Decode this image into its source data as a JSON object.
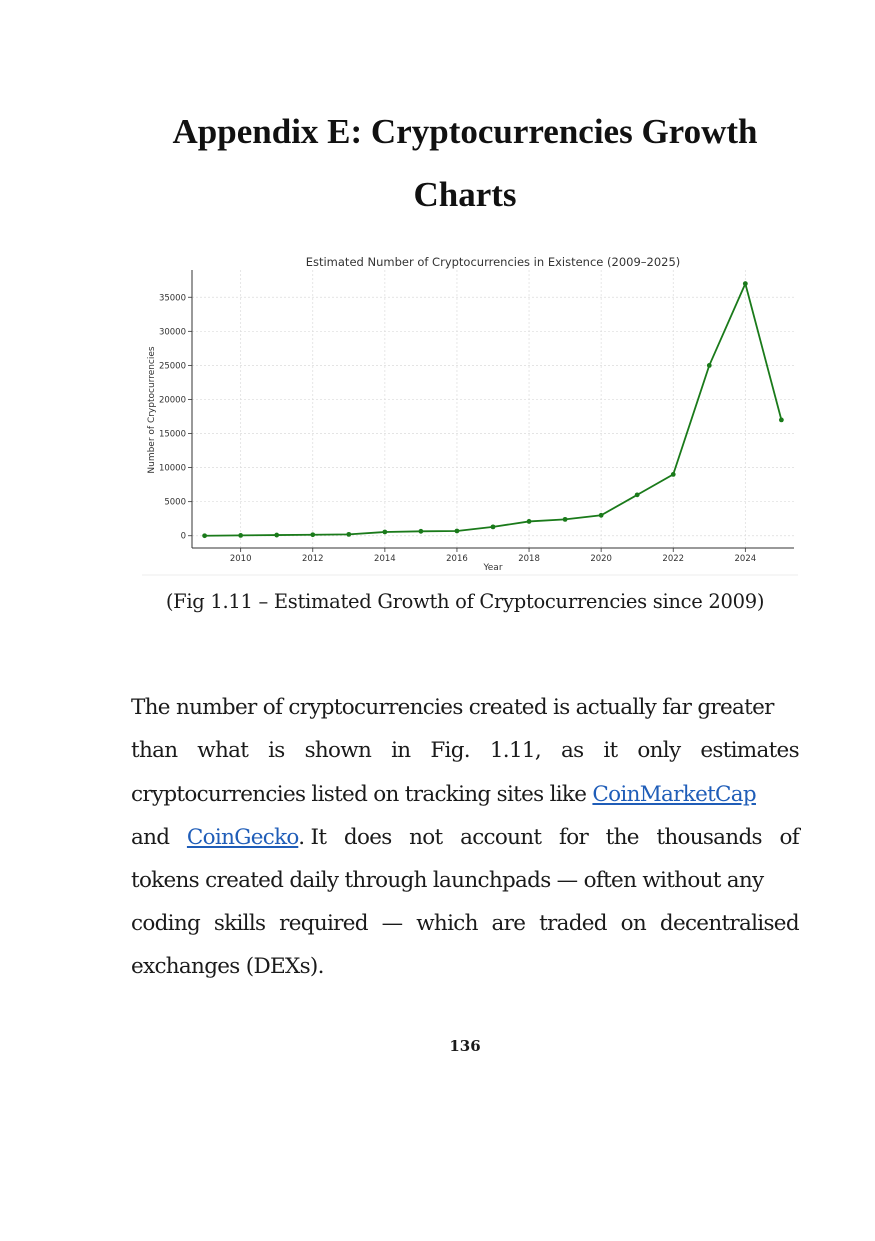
{
  "heading": {
    "line1": "Appendix E: Cryptocurrencies Growth",
    "line2": "Charts"
  },
  "figure": {
    "caption": "(Fig 1.11 – Estimated Growth of Cryptocurrencies since 2009)"
  },
  "chart_data": {
    "type": "line",
    "title": "Estimated Number of Cryptocurrencies in Existence (2009–2025)",
    "xlabel": "Year",
    "ylabel": "Number of Cryptocurrencies",
    "x": [
      2009,
      2010,
      2011,
      2012,
      2013,
      2014,
      2015,
      2016,
      2017,
      2018,
      2019,
      2020,
      2021,
      2022,
      2023,
      2024,
      2025
    ],
    "series": [
      {
        "values": [
          0,
          50,
          100,
          150,
          200,
          550,
          650,
          700,
          1300,
          2100,
          2400,
          3000,
          6000,
          9000,
          25000,
          37000,
          17000
        ]
      }
    ],
    "xticks": [
      "2010",
      "2012",
      "2014",
      "2016",
      "2018",
      "2020",
      "2022",
      "2024"
    ],
    "yticks": [
      "0",
      "5000",
      "10000",
      "15000",
      "20000",
      "25000",
      "30000",
      "35000"
    ],
    "xlim": [
      2008.65,
      2025.35
    ],
    "ylim": [
      -1800,
      39000
    ],
    "grid": true,
    "line_color": "#1a7a1a"
  },
  "paragraph": {
    "l1": "The number of cryptocurrencies created is actually far greater",
    "l2_words": [
      "than",
      "what",
      "is",
      "shown",
      "in",
      "Fig.",
      "1.11,",
      "as",
      "it",
      "only",
      "estimates"
    ],
    "l3_text": "cryptocurrencies listed on tracking sites like ",
    "link_cmc": "CoinMarketCap",
    "l4_and": "and",
    "link_cg": "CoinGecko",
    "l4_words": [
      ". It",
      "does",
      "not",
      "account",
      "for",
      "the",
      "thousands",
      "of"
    ],
    "l5": "tokens created daily through launchpads — often without any",
    "l6_words": [
      "coding",
      "skills",
      "required",
      "—",
      "which",
      "are",
      "traded",
      "on",
      "decentralised"
    ],
    "l7": "exchanges (DEXs)."
  },
  "page_number": "136"
}
